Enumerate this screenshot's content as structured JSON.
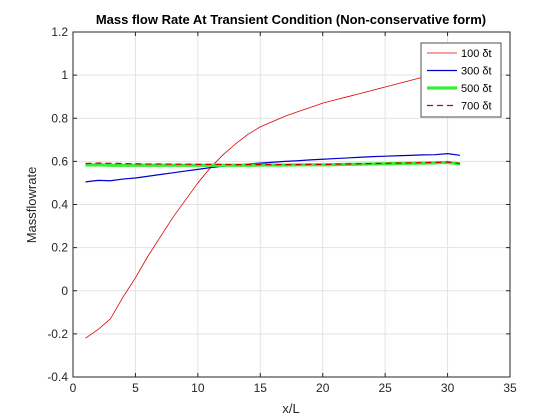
{
  "chart_data": {
    "type": "line",
    "title": "Mass flow Rate At Transient Condition  (Non-conservative form)",
    "xlabel": "x/L",
    "ylabel": "Massflowrate",
    "xlim": [
      0,
      35
    ],
    "ylim": [
      -0.4,
      1.2
    ],
    "xticks": [
      0,
      5,
      10,
      15,
      20,
      25,
      30,
      35
    ],
    "xtick_labels": [
      "0",
      "5",
      "10",
      "15",
      "20",
      "25",
      "30",
      "35"
    ],
    "yticks": [
      -0.4,
      -0.2,
      0,
      0.2,
      0.4,
      0.6,
      0.8,
      1,
      1.2
    ],
    "ytick_labels": [
      "-0.4",
      "-0.2",
      "0",
      "0.2",
      "0.4",
      "0.6",
      "0.8",
      "1",
      "1.2"
    ],
    "grid": true,
    "legend_position": "top-right",
    "series": [
      {
        "name": "100 δt",
        "color": "#e00000",
        "style": "solid",
        "width": 0.8,
        "x": [
          1,
          2,
          3,
          4,
          5,
          6,
          7,
          8,
          9,
          10,
          11,
          12,
          13,
          14,
          15,
          16,
          17,
          18,
          19,
          20,
          21,
          22,
          23,
          24,
          25,
          26,
          27,
          28,
          29,
          30,
          31
        ],
        "y": [
          -0.22,
          -0.18,
          -0.13,
          -0.03,
          0.06,
          0.16,
          0.25,
          0.34,
          0.42,
          0.5,
          0.57,
          0.63,
          0.68,
          0.725,
          0.76,
          0.785,
          0.81,
          0.83,
          0.85,
          0.87,
          0.885,
          0.9,
          0.915,
          0.93,
          0.945,
          0.96,
          0.975,
          0.99,
          1.005,
          1.02,
          1.035
        ]
      },
      {
        "name": "300 δt",
        "color": "#0000cc",
        "style": "solid",
        "width": 1.2,
        "x": [
          1,
          2,
          3,
          4,
          5,
          6,
          7,
          8,
          9,
          10,
          11,
          12,
          13,
          14,
          15,
          16,
          17,
          18,
          19,
          20,
          21,
          22,
          23,
          24,
          25,
          26,
          27,
          28,
          29,
          30,
          31
        ],
        "y": [
          0.505,
          0.512,
          0.51,
          0.518,
          0.523,
          0.531,
          0.539,
          0.547,
          0.555,
          0.563,
          0.571,
          0.578,
          0.583,
          0.588,
          0.592,
          0.596,
          0.6,
          0.603,
          0.607,
          0.61,
          0.613,
          0.616,
          0.619,
          0.622,
          0.624,
          0.626,
          0.628,
          0.63,
          0.631,
          0.636,
          0.628
        ]
      },
      {
        "name": "500 δt",
        "color": "#33ee33",
        "style": "solid",
        "width": 3.2,
        "x": [
          1,
          2,
          3,
          4,
          5,
          6,
          7,
          8,
          9,
          10,
          11,
          12,
          13,
          14,
          15,
          16,
          17,
          18,
          19,
          20,
          21,
          22,
          23,
          24,
          25,
          26,
          27,
          28,
          29,
          30,
          31
        ],
        "y": [
          0.583,
          0.584,
          0.582,
          0.582,
          0.582,
          0.582,
          0.582,
          0.582,
          0.582,
          0.582,
          0.582,
          0.582,
          0.582,
          0.582,
          0.583,
          0.583,
          0.583,
          0.584,
          0.584,
          0.584,
          0.585,
          0.586,
          0.587,
          0.588,
          0.589,
          0.59,
          0.591,
          0.592,
          0.593,
          0.595,
          0.588
        ]
      },
      {
        "name": "700 δt",
        "color": "#cc0000",
        "style": "dashed",
        "width": 1.2,
        "x": [
          1,
          2,
          3,
          4,
          5,
          6,
          7,
          8,
          9,
          10,
          11,
          12,
          13,
          14,
          15,
          16,
          17,
          18,
          19,
          20,
          21,
          22,
          23,
          24,
          25,
          26,
          27,
          28,
          29,
          30,
          31
        ],
        "y": [
          0.59,
          0.592,
          0.591,
          0.59,
          0.589,
          0.588,
          0.588,
          0.587,
          0.587,
          0.586,
          0.586,
          0.586,
          0.585,
          0.585,
          0.585,
          0.585,
          0.585,
          0.585,
          0.586,
          0.586,
          0.587,
          0.588,
          0.589,
          0.59,
          0.591,
          0.592,
          0.593,
          0.594,
          0.595,
          0.597,
          0.59
        ]
      }
    ]
  }
}
